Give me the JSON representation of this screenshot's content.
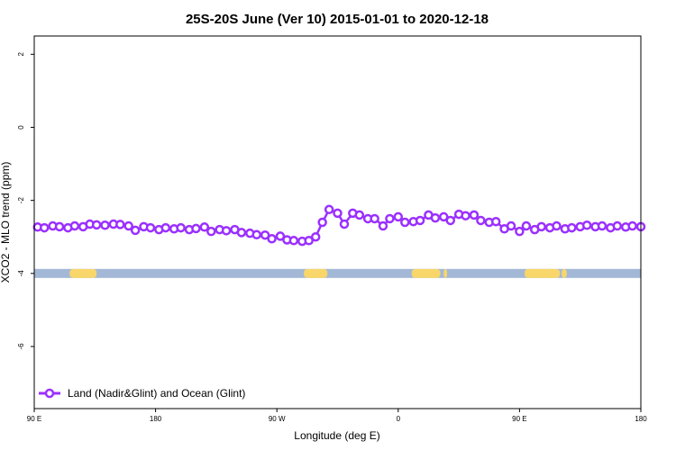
{
  "chart_data": {
    "type": "line",
    "title": "25S-20S June (Ver 10)   2015-01-01 to 2020-12-18",
    "xlabel": "Longitude (deg E)",
    "ylabel": "XCO2 - MLO trend (ppm)",
    "xlim": [
      90,
      450
    ],
    "ylim": [
      -7.7,
      2.5
    ],
    "x_ticks": [
      {
        "value": 90,
        "label": "90 E"
      },
      {
        "value": 162,
        "label": "180"
      },
      {
        "value": 234,
        "label": "90 W"
      },
      {
        "value": 306,
        "label": "0"
      },
      {
        "value": 378,
        "label": "90 E"
      },
      {
        "value": 450,
        "label": "180"
      }
    ],
    "y_ticks": [
      {
        "value": 2,
        "label": "2"
      },
      {
        "value": 0,
        "label": "0"
      },
      {
        "value": -2,
        "label": "-2"
      },
      {
        "value": -4,
        "label": "-4"
      },
      {
        "value": -6,
        "label": "-6"
      }
    ],
    "grid": false,
    "legend": {
      "position": "bottom-left",
      "entries": [
        "Land (Nadir&Glint) and Ocean (Glint)"
      ]
    },
    "series": [
      {
        "name": "Land (Nadir&Glint) and Ocean (Glint)",
        "color": "#9b30ff",
        "x": [
          92,
          96,
          101,
          105,
          110,
          114,
          119,
          123,
          127,
          132,
          137,
          141,
          146,
          150,
          155,
          159,
          164,
          168,
          173,
          177,
          182,
          186,
          191,
          195,
          200,
          204,
          209,
          213,
          218,
          222,
          227,
          231,
          236,
          240,
          244,
          249,
          253,
          257,
          261,
          265,
          270,
          274,
          279,
          283,
          288,
          292,
          297,
          301,
          306,
          310,
          315,
          319,
          324,
          328,
          333,
          337,
          342,
          346,
          351,
          355,
          360,
          364,
          369,
          373,
          378,
          382,
          387,
          391,
          396,
          400,
          405,
          409,
          414,
          418,
          423,
          427,
          432,
          436,
          441,
          445,
          450
        ],
        "y": [
          -2.73,
          -2.75,
          -2.7,
          -2.72,
          -2.75,
          -2.7,
          -2.72,
          -2.65,
          -2.67,
          -2.68,
          -2.65,
          -2.66,
          -2.7,
          -2.82,
          -2.72,
          -2.75,
          -2.8,
          -2.75,
          -2.78,
          -2.75,
          -2.8,
          -2.77,
          -2.73,
          -2.85,
          -2.8,
          -2.83,
          -2.8,
          -2.88,
          -2.9,
          -2.94,
          -2.95,
          -3.05,
          -2.98,
          -3.08,
          -3.1,
          -3.12,
          -3.1,
          -3.0,
          -2.6,
          -2.25,
          -2.35,
          -2.65,
          -2.35,
          -2.4,
          -2.5,
          -2.5,
          -2.7,
          -2.5,
          -2.45,
          -2.6,
          -2.58,
          -2.55,
          -2.4,
          -2.48,
          -2.45,
          -2.55,
          -2.38,
          -2.42,
          -2.4,
          -2.55,
          -2.6,
          -2.58,
          -2.78,
          -2.7,
          -2.85,
          -2.7,
          -2.8,
          -2.72,
          -2.75,
          -2.7,
          -2.78,
          -2.75,
          -2.72,
          -2.68,
          -2.72,
          -2.7,
          -2.75,
          -2.7,
          -2.73,
          -2.7,
          -2.72
        ]
      }
    ],
    "land_ocean_strip": {
      "y": -4,
      "ocean_color": "#a3b8d6",
      "land_color": "#f8d66a",
      "land_segments_lon": [
        [
          111,
          127
        ],
        [
          250,
          264
        ],
        [
          314,
          331
        ],
        [
          333,
          335
        ],
        [
          381,
          402
        ],
        [
          403,
          406
        ]
      ]
    }
  }
}
